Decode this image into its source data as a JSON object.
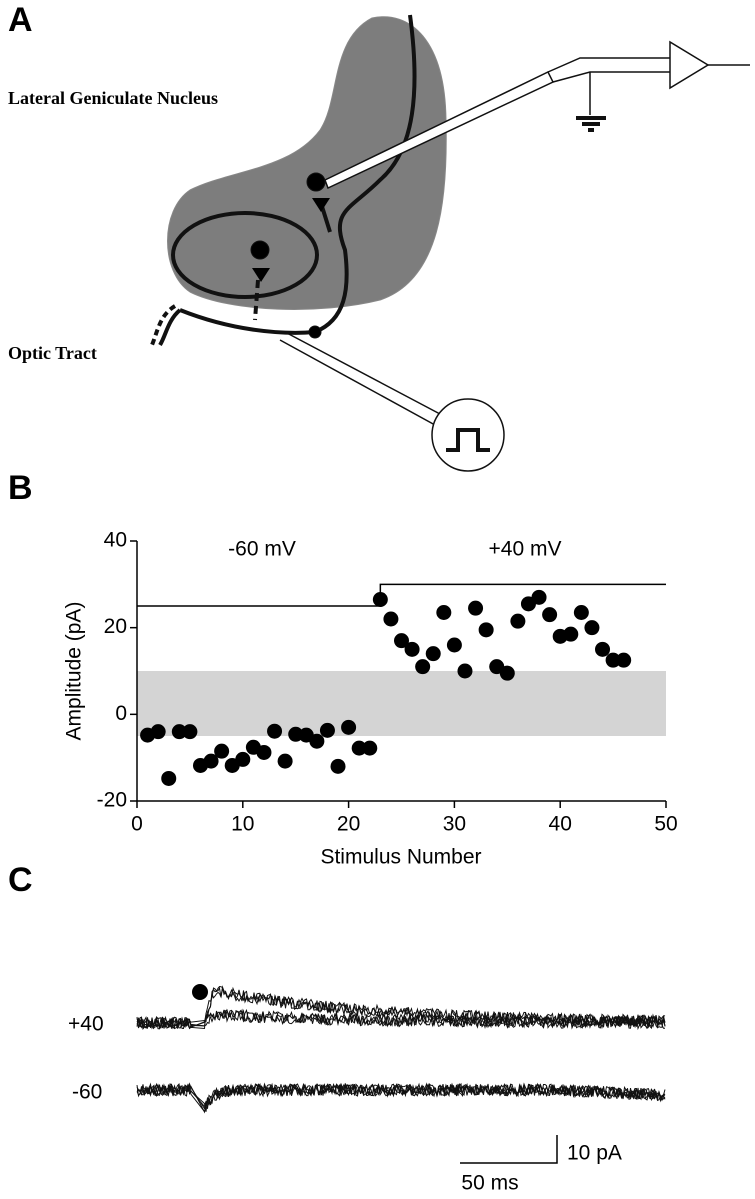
{
  "panel_labels": [
    "A",
    "B",
    "C"
  ],
  "panel_a": {
    "labels": [
      "Lateral Geniculate Nucleus",
      "Optic Tract"
    ]
  },
  "chart_data": {
    "type": "scatter",
    "x_label": "Stimulus Number",
    "y_label": "Amplitude (pA)",
    "annotations": [
      "-60 mV",
      "+40 mV"
    ],
    "x": [
      1,
      2,
      3,
      4,
      5,
      6,
      7,
      8,
      9,
      10,
      11,
      12,
      13,
      14,
      15,
      16,
      17,
      18,
      19,
      20,
      21,
      22,
      23,
      24,
      25,
      26,
      27,
      28,
      29,
      30,
      31,
      32,
      33,
      34,
      35,
      36,
      37,
      38,
      39,
      40,
      41,
      42,
      43,
      44,
      45,
      46
    ],
    "values": [
      -4.8,
      -4,
      -14.8,
      -4,
      -4,
      -11.8,
      -10.8,
      -8.5,
      -11.8,
      -10.4,
      -7.6,
      -8.8,
      -3.9,
      -10.8,
      -4.6,
      -4.8,
      -6.2,
      -3.7,
      -12,
      -3,
      -7.8,
      -7.8,
      26.5,
      22,
      17,
      15,
      11,
      14,
      23.5,
      16,
      10,
      24.5,
      19.5,
      11,
      9.5,
      21.5,
      25.5,
      27,
      23,
      18,
      18.5,
      23.5,
      20,
      15,
      12.5,
      12.5
    ],
    "color": "#000000",
    "stimulus_trace": {
      "x": [
        0,
        23,
        23,
        50
      ],
      "y": [
        25,
        25,
        30,
        30
      ]
    },
    "shaded_range": [
      -5,
      10
    ],
    "xlim": [
      0,
      50
    ],
    "xticks": [
      0,
      10,
      20,
      30,
      40,
      50
    ],
    "ylim": [
      -20,
      40
    ],
    "yticks": [
      -20,
      0,
      20,
      40
    ]
  },
  "panel_c": {
    "trace_labels": [
      "+40",
      "-60"
    ],
    "scale_bars": [
      "10 pA",
      "50 ms"
    ]
  }
}
